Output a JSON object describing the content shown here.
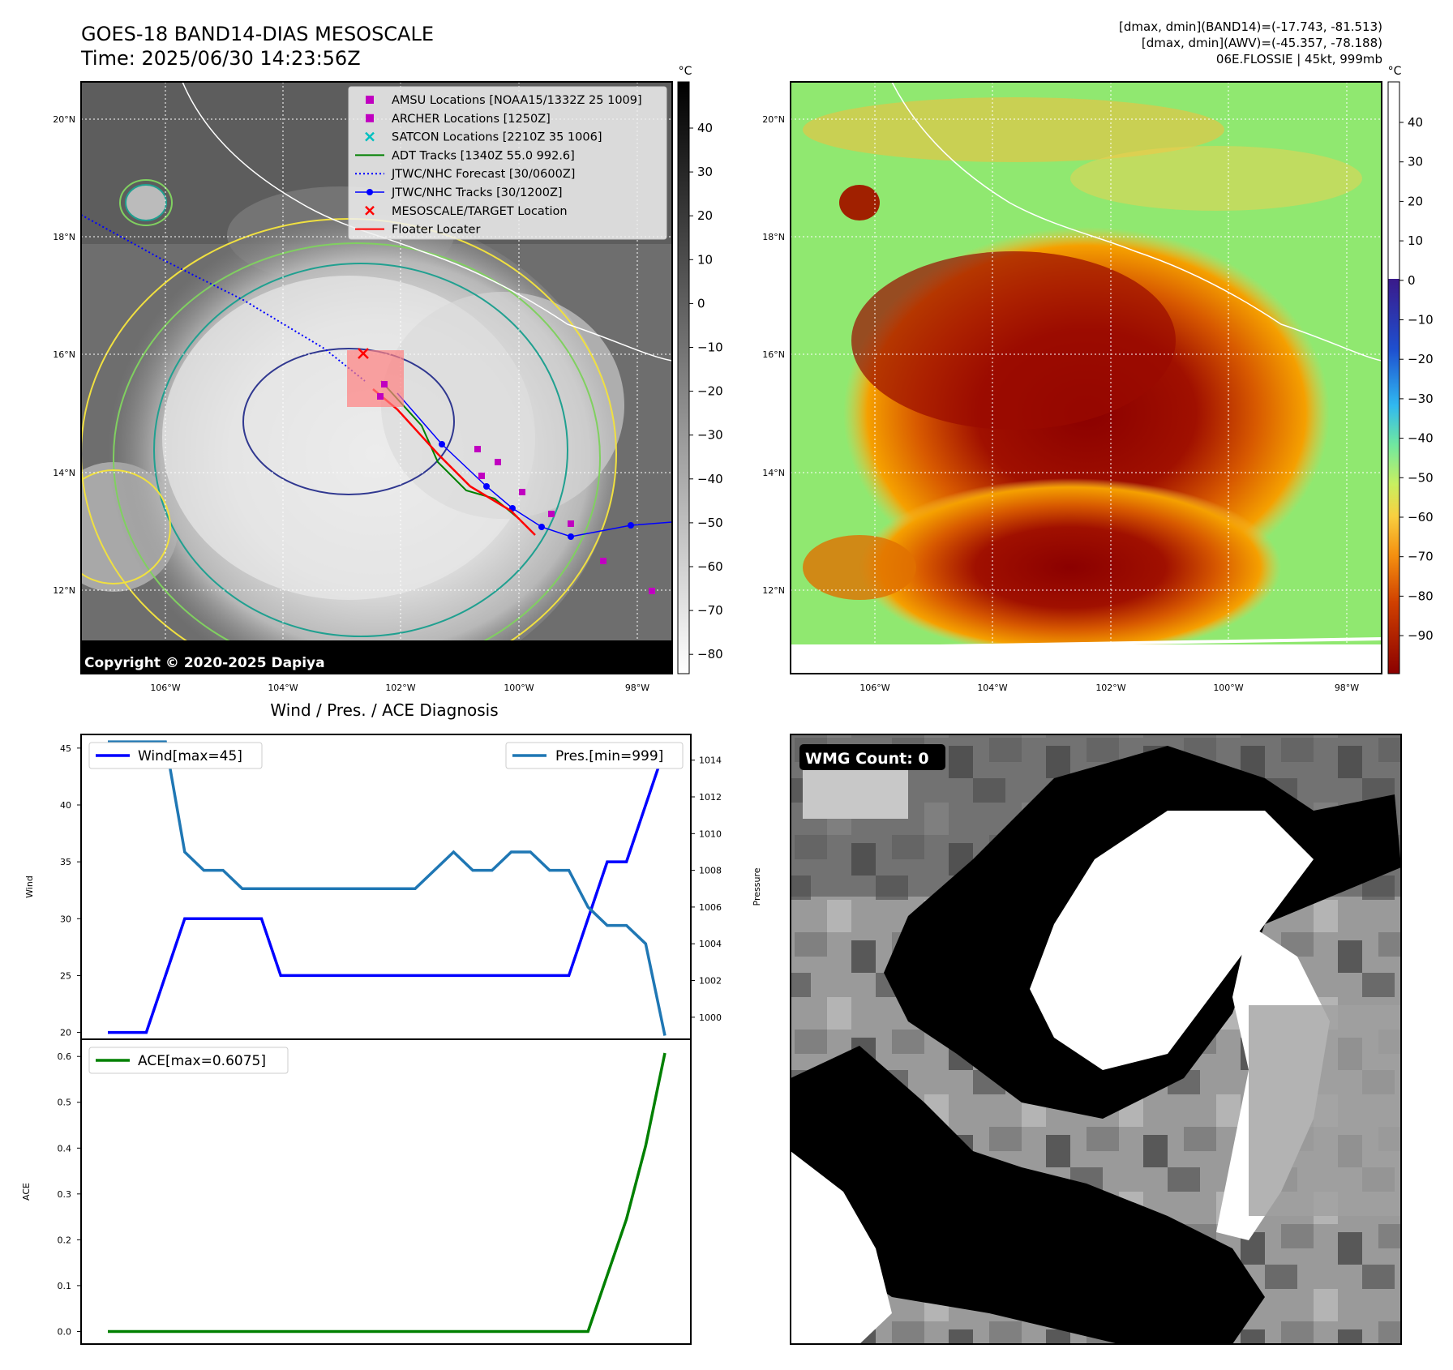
{
  "header": {
    "title": "GOES-18 BAND14-DIAS MESOSCALE",
    "time": "Time: 2025/06/30 14:23:56Z",
    "right_line1": "[dmax, dmin](BAND14)=(-17.743, -81.513)",
    "right_line2": "[dmax, dmin](AWV)=(-45.357, -78.188)",
    "right_line3": "06E.FLOSSIE | 45kt, 999mb"
  },
  "map_left": {
    "copyright": "Copyright © 2020-2025 Dapiya",
    "colorbar_unit": "°C",
    "colorbar_ticks": [
      "40",
      "30",
      "20",
      "10",
      "0",
      "−10",
      "−20",
      "−30",
      "−40",
      "−50",
      "−60",
      "−70",
      "−80"
    ],
    "legend": [
      {
        "label": "AMSU Locations [NOAA15/1332Z 25 1009]",
        "color": "#c000c0",
        "marker": "square"
      },
      {
        "label": "ARCHER Locations [1250Z]",
        "color": "#c000c0",
        "marker": "square"
      },
      {
        "label": "SATCON Locations [2210Z 35 1006]",
        "color": "#00c0c0",
        "marker": "x"
      },
      {
        "label": "ADT Tracks [1340Z 55.0 992.6]",
        "color": "#008000",
        "marker": "line"
      },
      {
        "label": "JTWC/NHC Forecast [30/0600Z]",
        "color": "#0000ff",
        "marker": "dotted"
      },
      {
        "label": "JTWC/NHC Tracks [30/1200Z]",
        "color": "#0000ff",
        "marker": "line-dot"
      },
      {
        "label": "MESOSCALE/TARGET Location",
        "color": "#ff0000",
        "marker": "x"
      },
      {
        "label": "Floater Locater",
        "color": "#ff0000",
        "marker": "line"
      }
    ]
  },
  "map_right": {
    "colorbar_unit": "°C",
    "colorbar_ticks": [
      "40",
      "30",
      "20",
      "10",
      "0",
      "−10",
      "−20",
      "−30",
      "−40",
      "−50",
      "−60",
      "−70",
      "−80",
      "−90"
    ]
  },
  "map_axes": {
    "lat_ticks": [
      "20°N",
      "18°N",
      "16°N",
      "14°N",
      "12°N"
    ],
    "lon_ticks": [
      "106°W",
      "104°W",
      "102°W",
      "100°W",
      "98°W"
    ]
  },
  "wmg": {
    "label": "WMG Count: 0"
  },
  "chart_data": [
    {
      "type": "line",
      "title": "Wind / Pres. / ACE Diagnosis",
      "ylabel": "Wind",
      "y2label": "Pressure",
      "ylim": [
        19.4,
        46.2
      ],
      "y2lim": [
        998.8,
        1015.4
      ],
      "yticks": [
        20,
        25,
        30,
        35,
        40,
        45
      ],
      "y2ticks": [
        1000,
        1002,
        1004,
        1006,
        1008,
        1010,
        1012,
        1014
      ],
      "series": [
        {
          "name": "Wind[max=45]",
          "color": "#0000ff",
          "axis": "left",
          "values": [
            20,
            20,
            20,
            25,
            30,
            30,
            30,
            30,
            30,
            25,
            25,
            25,
            25,
            25,
            25,
            25,
            25,
            25,
            25,
            25,
            25,
            25,
            25,
            25,
            25,
            30,
            35,
            35,
            40,
            45
          ]
        },
        {
          "name": "Pres.[min=999]",
          "color": "#1f77b4",
          "axis": "right",
          "values": [
            1015,
            1015,
            1015,
            1015,
            1009,
            1008,
            1008,
            1007,
            1007,
            1007,
            1007,
            1007,
            1007,
            1007,
            1007,
            1007,
            1007,
            1008,
            1009,
            1008,
            1008,
            1009,
            1009,
            1008,
            1008,
            1006,
            1005,
            1005,
            1004,
            999
          ]
        }
      ],
      "legend_positions": [
        "top-left",
        "top-right"
      ]
    },
    {
      "type": "line",
      "ylabel": "ACE",
      "ylim": [
        -0.0275,
        0.6375
      ],
      "yticks": [
        0.0,
        0.1,
        0.2,
        0.3,
        0.4,
        0.5,
        0.6
      ],
      "ytick_labels": [
        "0.0",
        "0.1",
        "0.2",
        "0.3",
        "0.4",
        "0.5",
        "0.6"
      ],
      "series": [
        {
          "name": "ACE[max=0.6075]",
          "color": "#008000",
          "values": [
            0,
            0,
            0,
            0,
            0,
            0,
            0,
            0,
            0,
            0,
            0,
            0,
            0,
            0,
            0,
            0,
            0,
            0,
            0,
            0,
            0,
            0,
            0,
            0,
            0,
            0,
            0.1225,
            0.245,
            0.405,
            0.6075
          ]
        }
      ],
      "legend_position": "top-left"
    }
  ]
}
